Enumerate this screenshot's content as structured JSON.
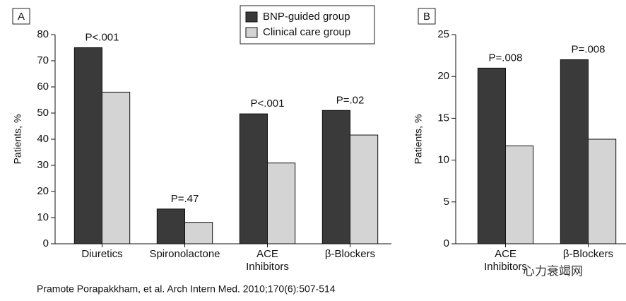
{
  "chart_data": [
    {
      "type": "bar",
      "panel_label": "A",
      "ylabel": "Patients, %",
      "categories": [
        "Diuretics",
        "Spironolactone",
        "ACE Inhibitors",
        "β-Blockers"
      ],
      "series": [
        {
          "name": "BNP-guided group",
          "color": "#3a3a3a",
          "values": [
            75,
            13.3,
            49.7,
            51
          ]
        },
        {
          "name": "Clinical care group",
          "color": "#d4d4d4",
          "values": [
            58,
            8.2,
            30.9,
            41.6
          ]
        }
      ],
      "annotations": [
        "P<.001",
        "P=.47",
        "P<.001",
        "P=.02"
      ],
      "ylim": [
        0,
        80
      ],
      "yticks": [
        0,
        10,
        20,
        30,
        40,
        50,
        60,
        70,
        80
      ]
    },
    {
      "type": "bar",
      "panel_label": "B",
      "ylabel": "Patients, %",
      "categories": [
        "ACE Inhibitors",
        "β-Blockers"
      ],
      "series": [
        {
          "color": "#3a3a3a",
          "values": [
            21,
            22
          ]
        },
        {
          "color": "#d4d4d4",
          "values": [
            11.7,
            12.5
          ]
        }
      ],
      "annotations": [
        "P=.008",
        "P=.008"
      ],
      "ylim": [
        0,
        25
      ],
      "yticks": [
        0,
        5,
        10,
        15,
        20,
        25
      ]
    }
  ],
  "caption": "Pramote Porapakkham, et al. Arch Intern Med. 2010;170(6):507-514",
  "watermark": "心力衰竭网"
}
